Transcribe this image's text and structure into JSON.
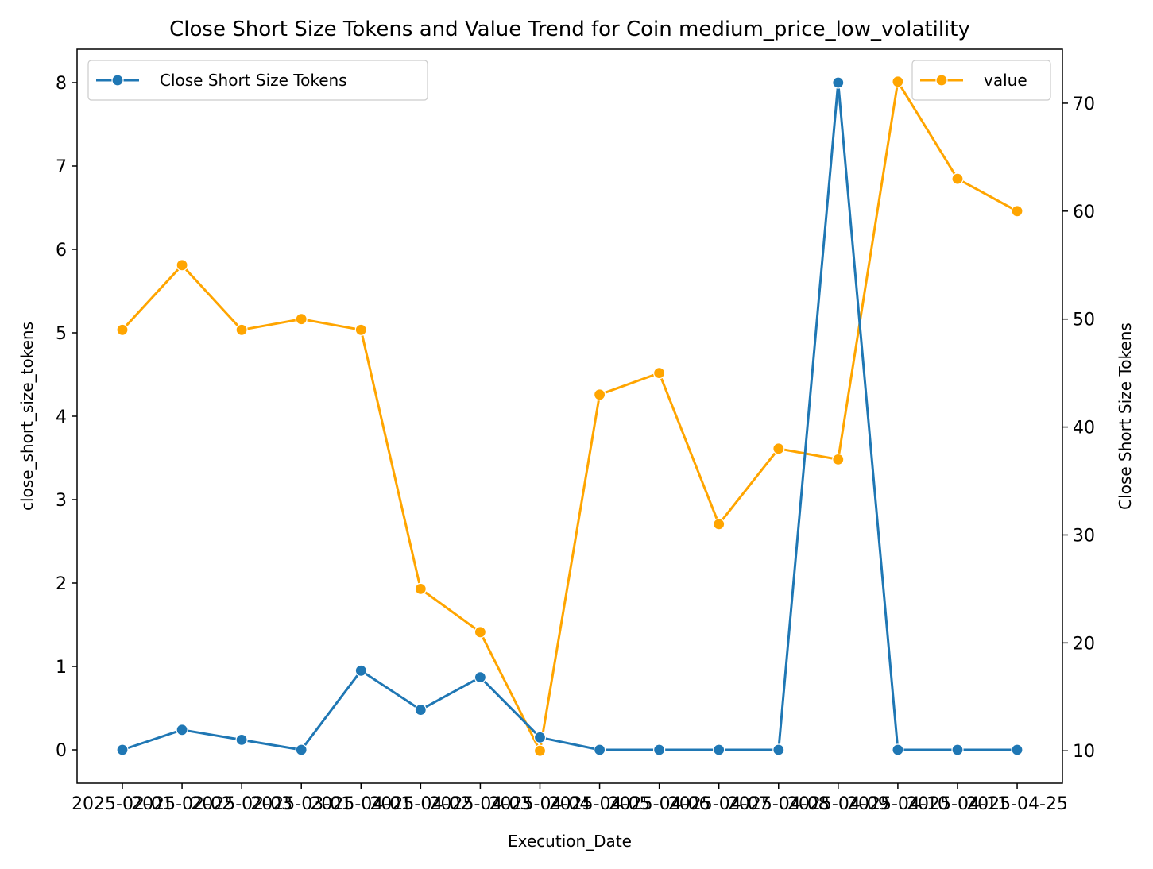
{
  "chart_data": {
    "type": "line",
    "title": "Close Short Size Tokens and Value Trend for Coin medium_price_low_volatility",
    "xlabel": "Execution_Date",
    "ylabel_left": "close_short_size_tokens",
    "ylabel_right": "Close Short Size Tokens",
    "x_tick_labels": [
      "2025-02-01",
      "2025-02-02",
      "2025-02-03",
      "2025-03-01",
      "2025-04-01",
      "2025-04-02",
      "2025-04-03",
      "2025-04-04",
      "2025-04-05",
      "2025-04-06",
      "2025-04-07",
      "2025-04-08",
      "2025-04-09",
      "2025-04-10",
      "2025-04-11",
      "2025-04-25"
    ],
    "left_axis": {
      "ylim": [
        -0.4,
        8.4
      ],
      "ticks": [
        0,
        1,
        2,
        3,
        4,
        5,
        6,
        7,
        8
      ]
    },
    "right_axis": {
      "ylim": [
        7,
        75
      ],
      "ticks": [
        10,
        20,
        30,
        40,
        50,
        60,
        70
      ]
    },
    "series": [
      {
        "name": "Close Short Size Tokens",
        "axis": "left",
        "color": "#1f77b4",
        "values": [
          0,
          0.24,
          0.12,
          0,
          0.95,
          0.48,
          0.87,
          0.15,
          0,
          0,
          0,
          0,
          8,
          0,
          0,
          0
        ]
      },
      {
        "name": "value",
        "axis": "right",
        "color": "#ffa500",
        "values": [
          49,
          55,
          49,
          50,
          49,
          25,
          21,
          10,
          43,
          45,
          31,
          38,
          37,
          72,
          63,
          60
        ]
      }
    ],
    "legend_left_position": "upper-left",
    "legend_right_position": "upper-right",
    "grid": false
  }
}
